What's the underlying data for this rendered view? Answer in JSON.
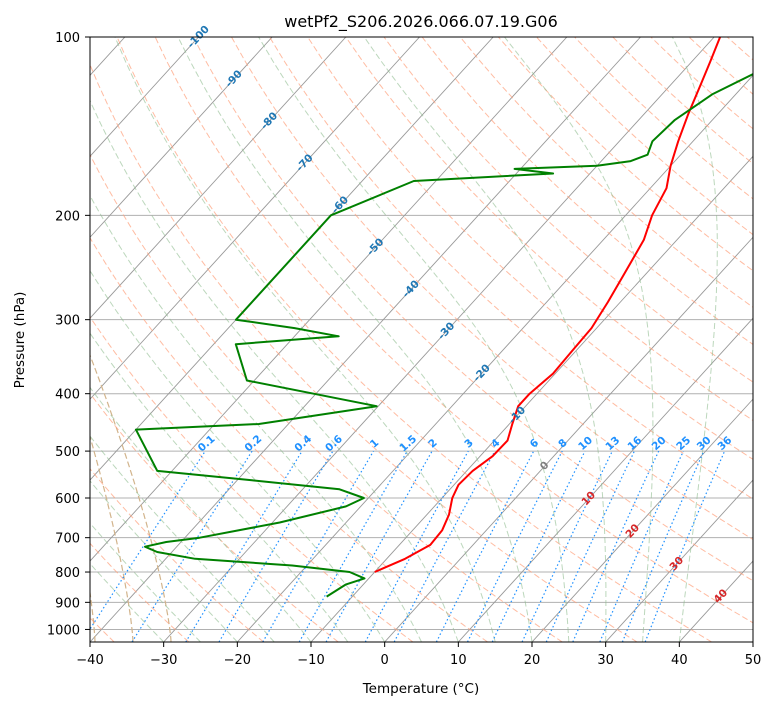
{
  "chart_data": {
    "type": "line",
    "diagram": "skew-T log-P",
    "title": "wetPf2_S206.2026.066.07.19.G06",
    "xlabel": "Temperature (°C)",
    "ylabel": "Pressure (hPa)",
    "xlim": [
      -40,
      50
    ],
    "ylim": [
      1050,
      100
    ],
    "y_scale": "log",
    "x_ticks": [
      "−40",
      "−30",
      "−20",
      "−10",
      "0",
      "10",
      "20",
      "30",
      "40",
      "50"
    ],
    "y_ticks": [
      100,
      200,
      300,
      400,
      500,
      600,
      700,
      800,
      900,
      1000
    ],
    "grid": true,
    "series": [
      {
        "kind": "temperature",
        "color": "#ff0000",
        "points": [
          [
            800,
            -10
          ],
          [
            760,
            -7.5
          ],
          [
            720,
            -5.8
          ],
          [
            680,
            -6.0
          ],
          [
            640,
            -7.0
          ],
          [
            600,
            -8.6
          ],
          [
            570,
            -9.4
          ],
          [
            540,
            -9.2
          ],
          [
            510,
            -8.3
          ],
          [
            480,
            -8.2
          ],
          [
            450,
            -9.6
          ],
          [
            420,
            -11.0
          ],
          [
            400,
            -11.0
          ],
          [
            370,
            -10.3
          ],
          [
            340,
            -10.5
          ],
          [
            310,
            -10.7
          ],
          [
            280,
            -11.7
          ],
          [
            250,
            -13.0
          ],
          [
            220,
            -14.5
          ],
          [
            200,
            -16.4
          ],
          [
            180,
            -17.8
          ],
          [
            165,
            -20.0
          ],
          [
            150,
            -22.0
          ],
          [
            135,
            -24.0
          ],
          [
            120,
            -26.0
          ],
          [
            110,
            -27.5
          ],
          [
            100,
            -29.2
          ]
        ]
      },
      {
        "kind": "dewpoint",
        "color": "#008000",
        "points": [
          [
            880,
            -13.5
          ],
          [
            840,
            -12.4
          ],
          [
            820,
            -10.6
          ],
          [
            800,
            -13.4
          ],
          [
            780,
            -22
          ],
          [
            760,
            -36
          ],
          [
            740,
            -42.0
          ],
          [
            725,
            -44.3
          ],
          [
            712,
            -42.0
          ],
          [
            700,
            -38
          ],
          [
            660,
            -29
          ],
          [
            620,
            -22
          ],
          [
            600,
            -20.6
          ],
          [
            580,
            -25
          ],
          [
            560,
            -38
          ],
          [
            540,
            -52
          ],
          [
            460,
            -60
          ],
          [
            450,
            -44
          ],
          [
            420,
            -30.2
          ],
          [
            380,
            -51
          ],
          [
            330,
            -57
          ],
          [
            320,
            -44.0
          ],
          [
            310,
            -51
          ],
          [
            300,
            -60
          ],
          [
            200,
            -60
          ],
          [
            175,
            -53.0
          ],
          [
            170,
            -35
          ],
          [
            167,
            -40.8
          ],
          [
            165,
            -30
          ],
          [
            162,
            -26.0
          ],
          [
            158,
            -24.5
          ],
          [
            150,
            -25.5
          ],
          [
            138,
            -25.1
          ],
          [
            125,
            -23.2
          ],
          [
            115,
            -20.0
          ],
          [
            100,
            -11.6
          ]
        ]
      }
    ],
    "isotherms_skewed": true,
    "isotherm_color": "#999999",
    "dry_adiabat_color": "#ffa07a",
    "moist_adiabat_color": "#8fbc8f",
    "mixing_ratio_color": "#1e90ff",
    "height_line_color": "#d2b48c",
    "mixing_ratio_labels": [
      "0.1",
      "0.2",
      "0.4",
      "0.6",
      "1",
      "1.5",
      "2",
      "3",
      "4",
      "6",
      "8",
      "10",
      "13",
      "16",
      "20",
      "25",
      "30",
      "36"
    ],
    "mixing_ratio_values": [
      0.1,
      0.2,
      0.4,
      0.6,
      1,
      1.5,
      2,
      3,
      4,
      6,
      8,
      10,
      13,
      16,
      20,
      25,
      30,
      36
    ],
    "isotherm_labels_blue": [
      "-100",
      "-90",
      "-80",
      "-70",
      "-60",
      "-50",
      "-40",
      "-30",
      "-20",
      "-10"
    ],
    "isotherm_labels_blue_values": [
      -100,
      -90,
      -80,
      -70,
      -60,
      -50,
      -40,
      -30,
      -20,
      -10
    ],
    "isotherm_label_blue_color": "#1f77b4",
    "isotherm_labels_lower": [
      "0",
      "10",
      "20",
      "30",
      "40"
    ],
    "isotherm_labels_lower_values": [
      0,
      10,
      20,
      30,
      40
    ],
    "isotherm_label_zero_color": "#808080",
    "isotherm_label_warm_color": "#d62728"
  }
}
